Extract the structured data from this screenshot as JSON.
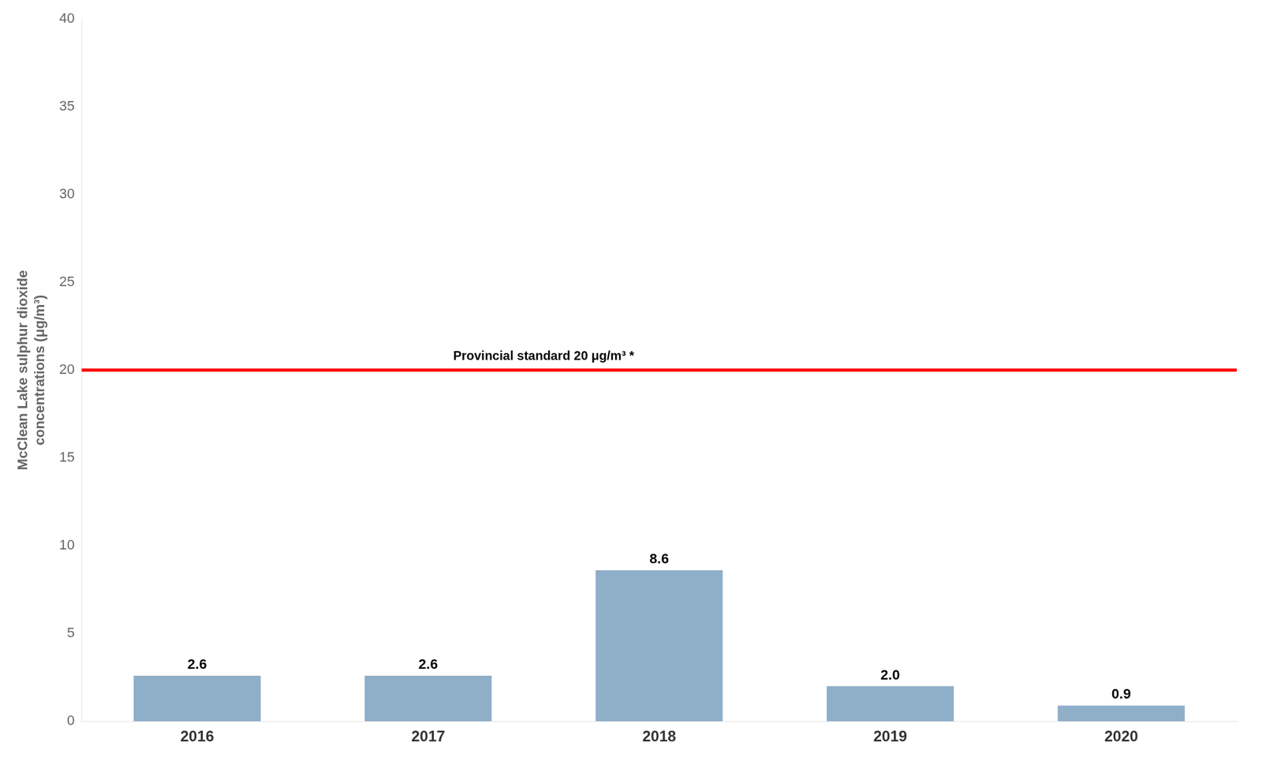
{
  "chart_data": {
    "type": "bar",
    "categories": [
      "2016",
      "2017",
      "2018",
      "2019",
      "2020"
    ],
    "values": [
      2.6,
      2.6,
      8.6,
      2.0,
      0.9
    ],
    "value_labels": [
      "2.6",
      "2.6",
      "8.6",
      "2.0",
      "0.9"
    ],
    "data_labels": true,
    "color": "#8FAEC8",
    "ylabel": "McClean Lake sulphur dioxide\nconcentrations (μg/m³)",
    "ylim": [
      0,
      40
    ],
    "yticks": [
      0,
      5,
      10,
      15,
      20,
      25,
      30,
      35,
      40
    ],
    "grid": false,
    "annotations": [
      {
        "type": "hline",
        "y": 20,
        "color": "#FF0000",
        "text": "Provincial standard 20 μg/m³ *"
      }
    ]
  }
}
